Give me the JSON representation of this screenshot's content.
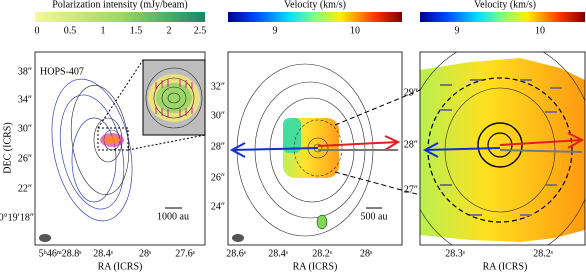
{
  "panels": [
    {
      "colorbar_label": "Polarization intensity (mJy/beam)",
      "colorbar_ticks": [
        "0",
        "0.5",
        "1",
        "1.5",
        "2",
        "2.5"
      ],
      "source_label": "HOPS-407",
      "y_ticks": [
        "38″",
        "34″",
        "30″",
        "26″",
        "22″",
        "0°19′18″"
      ],
      "x_ticks": [
        "5ʰ46ᵐ28.8ˢ",
        "28.4ˢ",
        "28ˢ",
        "27.6ˢ"
      ],
      "x_label": "RA (ICRS)",
      "y_label": "DEC (ICRS)",
      "scale_bar": "1000 au"
    },
    {
      "colorbar_label": "Velocity (km/s)",
      "colorbar_ticks": [
        "9",
        "10"
      ],
      "y_ticks": [
        "32″",
        "30″",
        "28″",
        "26″",
        "24″"
      ],
      "x_ticks": [
        "28.6ˢ",
        "28.4ˢ",
        "28.2ˢ",
        "28ˢ"
      ],
      "x_label": "RA (ICRS)",
      "scale_bar": "500 au"
    },
    {
      "colorbar_label": "Velocity (km/s)",
      "colorbar_ticks": [
        "9",
        "10"
      ],
      "y_ticks": [
        "29″",
        "28″",
        "27″"
      ],
      "x_ticks": [
        "28.3ˢ",
        "28.2ˢ"
      ],
      "x_label": "RA (ICRS)"
    }
  ]
}
